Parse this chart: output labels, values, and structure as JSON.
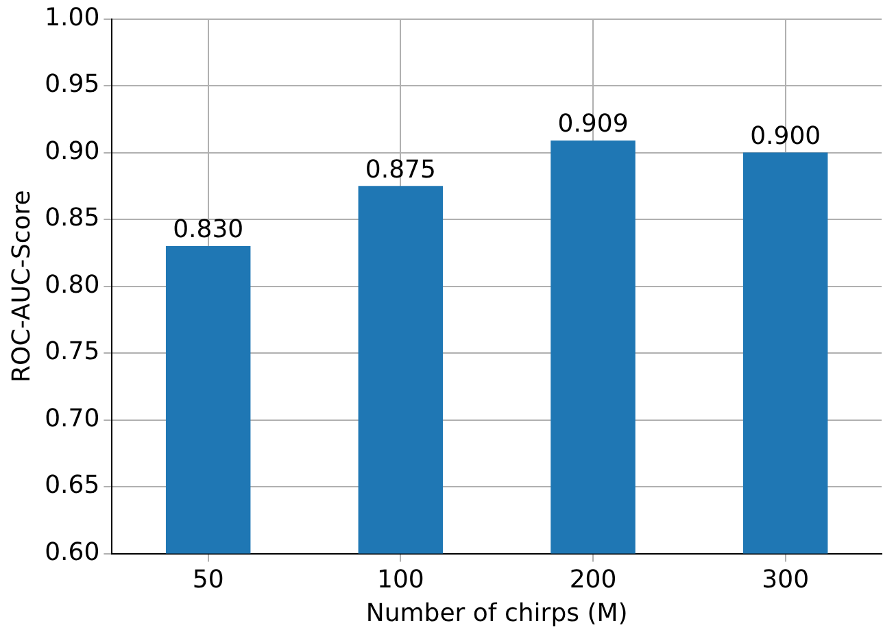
{
  "chart_data": {
    "type": "bar",
    "xlabel": "Number of chirps (M)",
    "ylabel": "ROC-AUC-Score",
    "categories": [
      "50",
      "100",
      "200",
      "300"
    ],
    "values": [
      0.83,
      0.875,
      0.909,
      0.9
    ],
    "value_labels": [
      "0.830",
      "0.875",
      "0.909",
      "0.900"
    ],
    "color": "#1f77b4",
    "ylim": [
      0.6,
      1.0
    ],
    "yticks": [
      {
        "value": 0.6,
        "label": "0.60"
      },
      {
        "value": 0.65,
        "label": "0.65"
      },
      {
        "value": 0.7,
        "label": "0.70"
      },
      {
        "value": 0.75,
        "label": "0.75"
      },
      {
        "value": 0.8,
        "label": "0.80"
      },
      {
        "value": 0.85,
        "label": "0.85"
      },
      {
        "value": 0.9,
        "label": "0.90"
      },
      {
        "value": 0.95,
        "label": "0.95"
      },
      {
        "value": 1.0,
        "label": "1.00"
      }
    ],
    "grid": true
  }
}
